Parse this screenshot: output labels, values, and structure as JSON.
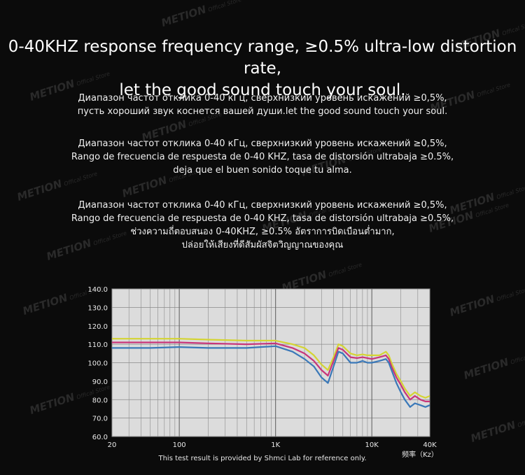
{
  "headline": {
    "line1": "0-40KHZ response frequency range, ≥0.5% ultra-low distortion rate,",
    "line2": "let the good sound touch your soul."
  },
  "paragraphs": [
    [
      "Диапазон частот отклика 0-40 кГц, сверхнизкий уровень искажений ≥0,5%,",
      "пусть хороший звук коснется вашей души.let the good sound touch your soul."
    ],
    [
      "Диапазон частот отклика 0-40 кГц, сверхнизкий уровень искажений ≥0,5%,",
      "Rango de frecuencia de respuesta de 0-40 KHZ, tasa de distorsión ultrabaja ≥0.5%,",
      "deja que el buen sonido toque tu alma."
    ],
    [
      "Диапазон частот отклика 0-40 кГц, сверхнизкий уровень искажений ≥0,5%,",
      "Rango de frecuencia de respuesta de 0-40 KHZ, tasa de distorsión ultrabaja ≥0.5%,",
      "ช่วงความถี่ตอบสนอง 0-40KHZ, ≥0.5% อัตราการบิดเบือนต่ำมาก,",
      "ปล่อยให้เสียงที่ดีสัมผัสจิตวิญญาณของคุณ"
    ]
  ],
  "watermark": {
    "brand": "METION",
    "sub": "Offical Store"
  },
  "caption": "This test result is provided by Shmci Lab for reference only.",
  "colors": {
    "background": "#0b0b0b",
    "plot_bg": "#dcdcdc",
    "grid": "#8a8a8a"
  },
  "chart_data": {
    "type": "line",
    "title": "",
    "xlabel": "频率（Kz）",
    "ylabel": "",
    "x_scale": "log",
    "xlim": [
      20,
      40000
    ],
    "ylim": [
      60,
      140
    ],
    "x_tick_labels": [
      "20",
      "100",
      "1K",
      "10K",
      "40K"
    ],
    "x_tick_values": [
      20,
      100,
      1000,
      10000,
      40000
    ],
    "y_tick_labels": [
      "60.0",
      "70.0",
      "80.0",
      "90.0",
      "100.0",
      "110.0",
      "120.0",
      "130.0",
      "140.0"
    ],
    "y_tick_values": [
      60,
      70,
      80,
      90,
      100,
      110,
      120,
      130,
      140
    ],
    "grid": true,
    "series": [
      {
        "color": "#d4d433",
        "x": [
          20,
          50,
          100,
          200,
          500,
          1000,
          1500,
          2000,
          2500,
          3000,
          3500,
          4000,
          4500,
          5000,
          6000,
          7000,
          8000,
          9000,
          10000,
          12000,
          14000,
          15000,
          16000,
          18000,
          20000,
          22000,
          25000,
          28000,
          32000,
          36000,
          40000
        ],
        "y": [
          113,
          113,
          113,
          112.5,
          112,
          112,
          110,
          108,
          104,
          99,
          96,
          103,
          110,
          109,
          105,
          104,
          104.5,
          104,
          104,
          104,
          106,
          104,
          100,
          94,
          90,
          86,
          82,
          84,
          82,
          81,
          82
        ]
      },
      {
        "color": "#c8357a",
        "x": [
          20,
          50,
          100,
          200,
          500,
          1000,
          1500,
          2000,
          2500,
          3000,
          3500,
          4000,
          4500,
          5000,
          6000,
          7000,
          8000,
          9000,
          10000,
          12000,
          14000,
          15000,
          16000,
          18000,
          20000,
          22000,
          25000,
          28000,
          32000,
          36000,
          40000
        ],
        "y": [
          111,
          111,
          111,
          110.5,
          110,
          110.5,
          108,
          105,
          101,
          96,
          93,
          101,
          108,
          107,
          103,
          102.5,
          103,
          102.5,
          102,
          103,
          104,
          102,
          98,
          92,
          88,
          84,
          80,
          82,
          80,
          79,
          79
        ]
      },
      {
        "color": "#3a78b8",
        "x": [
          20,
          50,
          100,
          200,
          500,
          1000,
          1500,
          2000,
          2500,
          3000,
          3500,
          4000,
          4500,
          5000,
          6000,
          7000,
          8000,
          9000,
          10000,
          12000,
          14000,
          15000,
          16000,
          18000,
          20000,
          22000,
          25000,
          28000,
          32000,
          36000,
          40000
        ],
        "y": [
          108,
          108,
          108.5,
          108,
          108,
          109,
          106,
          102,
          98,
          92,
          89,
          98,
          106,
          105,
          100,
          100,
          101,
          100,
          100,
          101,
          102,
          100,
          96,
          89,
          84,
          80,
          76,
          78,
          77,
          76,
          77
        ]
      }
    ]
  }
}
